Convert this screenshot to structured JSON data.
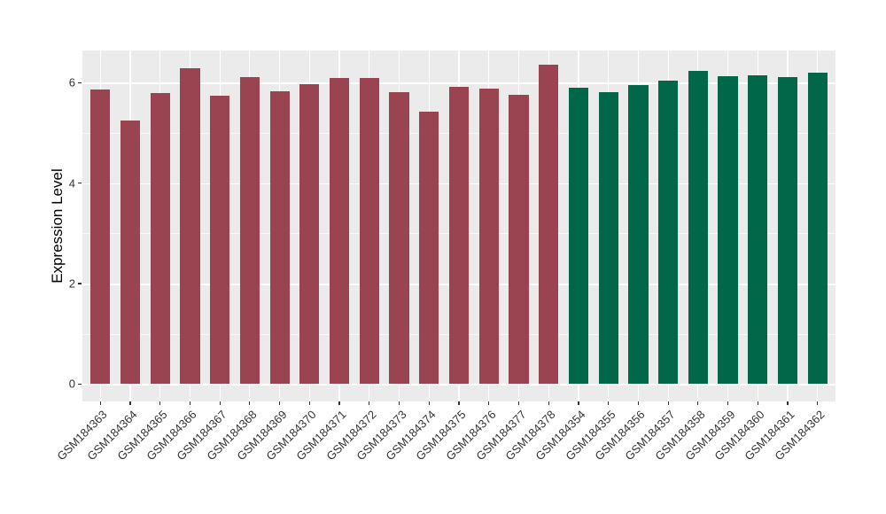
{
  "chart_data": {
    "type": "bar",
    "title": "",
    "xlabel": "",
    "ylabel": "Expression Level",
    "legend": "none",
    "grid": "major+minor",
    "panel_bg": "#EBEBEB",
    "grid_color": "#FFFFFF",
    "axis_text_color": "#333333",
    "tick_color": "#333333",
    "ylim": [
      -0.33,
      6.64
    ],
    "yticks": [
      0,
      2,
      4,
      6
    ],
    "minor_yticks": [
      1,
      3,
      5
    ],
    "palette": {
      "maroon": "#9A4452",
      "green": "#006749"
    },
    "categories": [
      "GSM184363",
      "GSM184364",
      "GSM184365",
      "GSM184366",
      "GSM184367",
      "GSM184368",
      "GSM184369",
      "GSM184370",
      "GSM184371",
      "GSM184372",
      "GSM184373",
      "GSM184374",
      "GSM184375",
      "GSM184376",
      "GSM184377",
      "GSM184378",
      "GSM184354",
      "GSM184355",
      "GSM184356",
      "GSM184357",
      "GSM184358",
      "GSM184359",
      "GSM184360",
      "GSM184361",
      "GSM184362"
    ],
    "values": [
      5.87,
      5.25,
      5.79,
      6.29,
      5.74,
      6.11,
      5.83,
      5.97,
      6.09,
      6.1,
      5.81,
      5.42,
      5.91,
      5.88,
      5.76,
      6.36,
      5.9,
      5.82,
      5.95,
      6.04,
      6.23,
      6.13,
      6.15,
      6.12,
      6.2
    ],
    "groups": [
      "maroon",
      "maroon",
      "maroon",
      "maroon",
      "maroon",
      "maroon",
      "maroon",
      "maroon",
      "maroon",
      "maroon",
      "maroon",
      "maroon",
      "maroon",
      "maroon",
      "maroon",
      "maroon",
      "green",
      "green",
      "green",
      "green",
      "green",
      "green",
      "green",
      "green",
      "green"
    ]
  }
}
